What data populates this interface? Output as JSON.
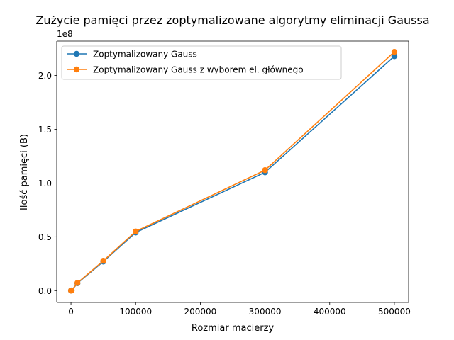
{
  "chart_data": {
    "type": "line",
    "title": "Zużycie pamięci przez zoptymalizowane algorytmy eliminacji Gaussa",
    "xlabel": "Rozmiar macierzy",
    "ylabel": "Ilość pamięci (B)",
    "y_offset_label": "1e8",
    "xlim": [
      -22000,
      522000
    ],
    "ylim": [
      -0.11,
      2.32
    ],
    "y_scale_note": "values in units of 1e8 B",
    "x_ticks": [
      0,
      100000,
      200000,
      300000,
      400000,
      500000
    ],
    "x_tick_labels": [
      "0",
      "100000",
      "200000",
      "300000",
      "400000",
      "500000"
    ],
    "y_ticks": [
      0.0,
      0.5,
      1.0,
      1.5,
      2.0
    ],
    "y_tick_labels": [
      "0.0",
      "0.5",
      "1.0",
      "1.5",
      "2.0"
    ],
    "grid": false,
    "legend_position": "top-left",
    "x": [
      100,
      1000,
      10000,
      50000,
      100000,
      300000,
      500000
    ],
    "series": [
      {
        "name": "Zoptymalizowany Gauss",
        "color": "#1f77b4",
        "marker": "circle",
        "values": [
          0.0001,
          0.0011,
          0.069,
          0.27,
          0.54,
          1.1,
          2.18
        ]
      },
      {
        "name": "Zoptymalizowany Gauss z wyborem el. głównego",
        "color": "#ff7f0e",
        "marker": "circle",
        "values": [
          0.0001,
          0.0011,
          0.072,
          0.277,
          0.55,
          1.12,
          2.22
        ]
      }
    ]
  }
}
